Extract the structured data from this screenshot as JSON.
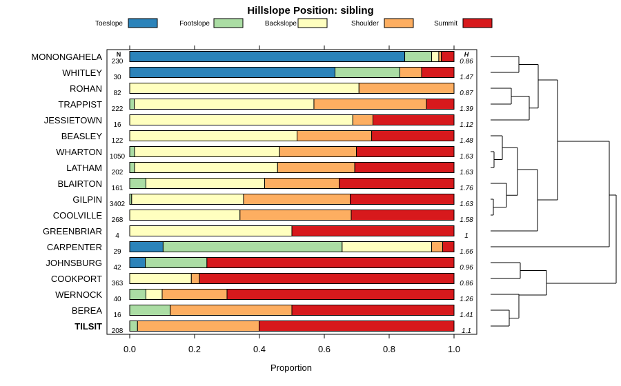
{
  "chart_data": {
    "type": "bar",
    "orientation": "horizontal",
    "stacked": true,
    "title": "Hillslope Position: sibling",
    "xlabel": "Proportion",
    "xlim": [
      0,
      1
    ],
    "x_ticks": [
      "0.0",
      "0.2",
      "0.4",
      "0.6",
      "0.8",
      "1.0"
    ],
    "n_header": "N",
    "h_header": "H",
    "legend_position": "top",
    "series": [
      {
        "name": "Toeslope",
        "color": "#2b83ba"
      },
      {
        "name": "Footslope",
        "color": "#abdda4"
      },
      {
        "name": "Backslope",
        "color": "#ffffbf"
      },
      {
        "name": "Shoulder",
        "color": "#fdae61"
      },
      {
        "name": "Summit",
        "color": "#d7191c"
      }
    ],
    "rows": [
      {
        "name": "MONONGAHELA",
        "n": "230",
        "h": "0.86",
        "bold": false,
        "values": [
          0.848,
          0.083,
          0.022,
          0.008,
          0.039
        ]
      },
      {
        "name": "WHITLEY",
        "n": "30",
        "h": "1.47",
        "bold": false,
        "values": [
          0.633,
          0.2,
          0.0,
          0.067,
          0.1
        ]
      },
      {
        "name": "ROHAN",
        "n": "82",
        "h": "0.87",
        "bold": false,
        "values": [
          0.0,
          0.0,
          0.707,
          0.293,
          0.0
        ]
      },
      {
        "name": "TRAPPIST",
        "n": "222",
        "h": "1.39",
        "bold": false,
        "values": [
          0.0,
          0.014,
          0.554,
          0.347,
          0.085
        ]
      },
      {
        "name": "JESSIETOWN",
        "n": "16",
        "h": "1.12",
        "bold": false,
        "values": [
          0.0,
          0.0,
          0.688,
          0.062,
          0.25
        ]
      },
      {
        "name": "BEASLEY",
        "n": "122",
        "h": "1.48",
        "bold": false,
        "values": [
          0.0,
          0.0,
          0.516,
          0.23,
          0.254
        ]
      },
      {
        "name": "WHARTON",
        "n": "1050",
        "h": "1.63",
        "bold": false,
        "values": [
          0.0,
          0.015,
          0.447,
          0.237,
          0.301
        ]
      },
      {
        "name": "LATHAM",
        "n": "202",
        "h": "1.63",
        "bold": false,
        "values": [
          0.0,
          0.015,
          0.441,
          0.238,
          0.306
        ]
      },
      {
        "name": "BLAIRTON",
        "n": "161",
        "h": "1.76",
        "bold": false,
        "values": [
          0.0,
          0.05,
          0.366,
          0.23,
          0.354
        ]
      },
      {
        "name": "GILPIN",
        "n": "3402",
        "h": "1.63",
        "bold": false,
        "values": [
          0.0,
          0.006,
          0.345,
          0.329,
          0.32
        ]
      },
      {
        "name": "COOLVILLE",
        "n": "268",
        "h": "1.58",
        "bold": false,
        "values": [
          0.0,
          0.0,
          0.34,
          0.343,
          0.317
        ]
      },
      {
        "name": "GREENBRIAR",
        "n": "4",
        "h": "1",
        "bold": false,
        "values": [
          0.0,
          0.0,
          0.5,
          0.0,
          0.5
        ]
      },
      {
        "name": "CARPENTER",
        "n": "29",
        "h": "1.66",
        "bold": false,
        "values": [
          0.103,
          0.552,
          0.276,
          0.034,
          0.035
        ]
      },
      {
        "name": "JOHNSBURG",
        "n": "42",
        "h": "0.96",
        "bold": false,
        "values": [
          0.048,
          0.19,
          0.0,
          0.0,
          0.762
        ]
      },
      {
        "name": "COOKPORT",
        "n": "363",
        "h": "0.86",
        "bold": false,
        "values": [
          0.0,
          0.0,
          0.19,
          0.025,
          0.785
        ]
      },
      {
        "name": "WERNOCK",
        "n": "40",
        "h": "1.26",
        "bold": false,
        "values": [
          0.0,
          0.05,
          0.05,
          0.2,
          0.7
        ]
      },
      {
        "name": "BEREA",
        "n": "16",
        "h": "1.41",
        "bold": false,
        "values": [
          0.0,
          0.125,
          0.0,
          0.375,
          0.5
        ]
      },
      {
        "name": "TILSIT",
        "n": "208",
        "h": "1.1",
        "bold": true,
        "values": [
          0.0,
          0.024,
          0.0,
          0.375,
          0.601
        ]
      }
    ]
  }
}
